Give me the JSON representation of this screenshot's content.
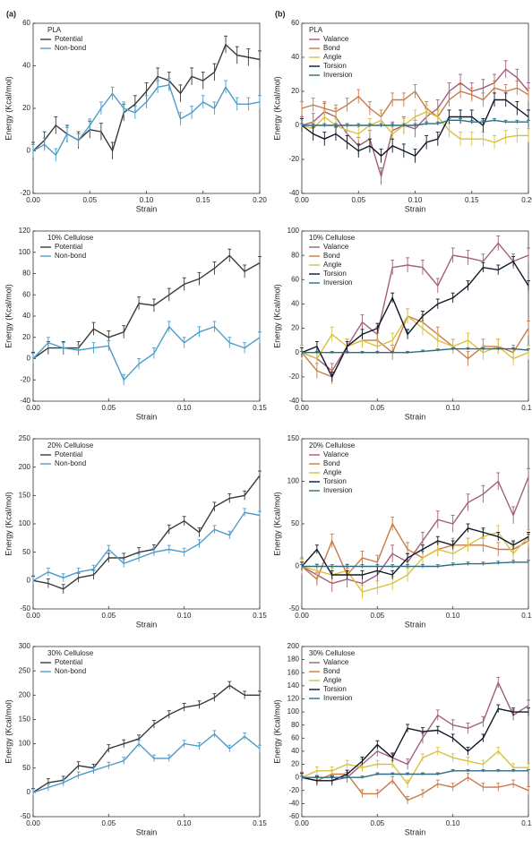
{
  "chart_data": [
    {
      "type": "line",
      "panel_label": "(a)",
      "legend_title": "PLA",
      "xlabel": "Strain",
      "ylabel": "Energy (Kcal/mol)",
      "x": [
        0,
        0.01,
        0.02,
        0.03,
        0.04,
        0.05,
        0.06,
        0.07,
        0.08,
        0.09,
        0.1,
        0.11,
        0.12,
        0.13,
        0.14,
        0.15,
        0.16,
        0.17,
        0.18,
        0.19,
        0.2
      ],
      "xlim": [
        0,
        0.2
      ],
      "xticks": [
        {
          "value": 0,
          "label": "0.00"
        },
        {
          "value": 0.05,
          "label": "0.05"
        },
        {
          "value": 0.1,
          "label": "0.10"
        },
        {
          "value": 0.15,
          "label": "0.15"
        },
        {
          "value": 0.2,
          "label": "0.20"
        }
      ],
      "ylim": [
        -20,
        60
      ],
      "yticks": [
        -20,
        0,
        20,
        40,
        60
      ],
      "series": [
        {
          "name": "Potential",
          "color": "#3a3a3a",
          "error": 4,
          "values": [
            0,
            5,
            12,
            8,
            5,
            10,
            9,
            0,
            18,
            22,
            28,
            35,
            33,
            27,
            35,
            33,
            37,
            50,
            45,
            44,
            43
          ]
        },
        {
          "name": "Non-bond",
          "color": "#4d9cc8",
          "error": 3,
          "values": [
            0,
            3,
            -2,
            8,
            5,
            12,
            20,
            27,
            20,
            18,
            23,
            30,
            31,
            15,
            18,
            23,
            20,
            30,
            22,
            22,
            23
          ]
        }
      ]
    },
    {
      "type": "line",
      "panel_label": "(b)",
      "legend_title": "PLA",
      "xlabel": "Strain",
      "ylabel": "Energy (Kcal/mol)",
      "x": [
        0,
        0.01,
        0.02,
        0.03,
        0.04,
        0.05,
        0.06,
        0.07,
        0.08,
        0.09,
        0.1,
        0.11,
        0.12,
        0.13,
        0.14,
        0.15,
        0.16,
        0.17,
        0.18,
        0.19,
        0.2
      ],
      "xlim": [
        0,
        0.2
      ],
      "xticks": [
        {
          "value": 0,
          "label": "0.00"
        },
        {
          "value": 0.05,
          "label": "0.05"
        },
        {
          "value": 0.1,
          "label": "0.10"
        },
        {
          "value": 0.15,
          "label": "0.15"
        },
        {
          "value": 0.2,
          "label": "0.20"
        }
      ],
      "ylim": [
        -40,
        60
      ],
      "yticks": [
        -40,
        -20,
        0,
        20,
        40,
        60
      ],
      "series": [
        {
          "name": "Valance",
          "color": "#a0607a",
          "error": 5,
          "values": [
            0,
            2,
            8,
            5,
            -5,
            -12,
            -8,
            -30,
            -3,
            0,
            -2,
            5,
            10,
            20,
            25,
            20,
            22,
            25,
            33,
            28,
            20
          ]
        },
        {
          "name": "Bond",
          "color": "#c87a4a",
          "error": 4,
          "values": [
            10,
            12,
            10,
            8,
            12,
            17,
            10,
            5,
            15,
            15,
            20,
            10,
            5,
            15,
            20,
            18,
            15,
            22,
            20,
            22,
            18
          ]
        },
        {
          "name": "Angle",
          "color": "#d8c040",
          "error": 4,
          "values": [
            0,
            -2,
            5,
            0,
            -3,
            -5,
            0,
            3,
            -5,
            0,
            5,
            8,
            5,
            -3,
            -8,
            -8,
            -8,
            -10,
            -7,
            -6,
            -6
          ]
        },
        {
          "name": "Torsion",
          "color": "#101828",
          "error": 4,
          "values": [
            0,
            -5,
            -8,
            -5,
            -10,
            -15,
            -12,
            -18,
            -12,
            -15,
            -18,
            -10,
            -8,
            5,
            5,
            5,
            0,
            15,
            15,
            10,
            5
          ]
        },
        {
          "name": "Inversion",
          "color": "#2f6a80",
          "error": 1,
          "values": [
            0,
            0,
            0,
            0,
            0,
            0,
            0,
            0,
            0,
            0,
            0,
            1,
            1,
            3,
            3,
            2,
            2,
            3,
            2,
            2,
            2
          ]
        }
      ]
    },
    {
      "type": "line",
      "legend_title": "10% Cellulose",
      "xlabel": "Strain",
      "ylabel": "Energy (Kcal/mol)",
      "x": [
        0,
        0.01,
        0.02,
        0.03,
        0.04,
        0.05,
        0.06,
        0.07,
        0.08,
        0.09,
        0.1,
        0.11,
        0.12,
        0.13,
        0.14,
        0.15
      ],
      "xlim": [
        0,
        0.15
      ],
      "xticks": [
        {
          "value": 0,
          "label": "0.00"
        },
        {
          "value": 0.05,
          "label": "0.05"
        },
        {
          "value": 0.1,
          "label": "0.10"
        },
        {
          "value": 0.15,
          "label": "0.15"
        }
      ],
      "ylim": [
        -40,
        120
      ],
      "yticks": [
        -40,
        -20,
        0,
        20,
        40,
        60,
        80,
        100,
        120
      ],
      "series": [
        {
          "name": "Potential",
          "color": "#3a3a3a",
          "error": 6,
          "values": [
            0,
            10,
            10,
            10,
            28,
            20,
            25,
            52,
            50,
            60,
            70,
            75,
            85,
            97,
            82,
            90
          ]
        },
        {
          "name": "Non-bond",
          "color": "#4d9cc8",
          "error": 5,
          "values": [
            0,
            15,
            10,
            8,
            10,
            12,
            -20,
            -5,
            5,
            30,
            15,
            25,
            30,
            15,
            10,
            20
          ]
        }
      ]
    },
    {
      "type": "line",
      "legend_title": "10% Cellulose",
      "xlabel": "Strain",
      "ylabel": "Energy (Kcal/mol)",
      "x": [
        0,
        0.01,
        0.02,
        0.03,
        0.04,
        0.05,
        0.06,
        0.07,
        0.08,
        0.09,
        0.1,
        0.11,
        0.12,
        0.13,
        0.14,
        0.15
      ],
      "xlim": [
        0,
        0.15
      ],
      "xticks": [
        {
          "value": 0,
          "label": "0.00"
        },
        {
          "value": 0.05,
          "label": "0.05"
        },
        {
          "value": 0.1,
          "label": "0.10"
        },
        {
          "value": 0.15,
          "label": "0.15"
        }
      ],
      "ylim": [
        -40,
        100
      ],
      "yticks": [
        -40,
        -20,
        0,
        20,
        40,
        60,
        80,
        100
      ],
      "series": [
        {
          "name": "Valance",
          "color": "#a0607a",
          "error": 6,
          "values": [
            0,
            -5,
            -15,
            5,
            25,
            15,
            70,
            72,
            70,
            55,
            80,
            78,
            75,
            90,
            75,
            80
          ]
        },
        {
          "name": "Bond",
          "color": "#c87a4a",
          "error": 6,
          "values": [
            0,
            -15,
            -20,
            5,
            10,
            10,
            0,
            30,
            25,
            15,
            5,
            -5,
            5,
            5,
            0,
            20
          ]
        },
        {
          "name": "Angle",
          "color": "#d8c040",
          "error": 6,
          "values": [
            0,
            -5,
            15,
            5,
            10,
            5,
            10,
            30,
            20,
            10,
            5,
            10,
            0,
            5,
            -5,
            0
          ]
        },
        {
          "name": "Torsion",
          "color": "#101828",
          "error": 4,
          "values": [
            0,
            5,
            -20,
            5,
            15,
            20,
            45,
            15,
            30,
            40,
            45,
            55,
            70,
            68,
            75,
            55
          ]
        },
        {
          "name": "Inversion",
          "color": "#2f6a80",
          "error": 1,
          "values": [
            0,
            0,
            0,
            0,
            0,
            0,
            0,
            0,
            1,
            2,
            3,
            3,
            3,
            3,
            3,
            2
          ]
        }
      ]
    },
    {
      "type": "line",
      "legend_title": "20% Cellulose",
      "xlabel": "Strain",
      "ylabel": "Energy (Kcal/mol)",
      "x": [
        0,
        0.01,
        0.02,
        0.03,
        0.04,
        0.05,
        0.06,
        0.07,
        0.08,
        0.09,
        0.1,
        0.11,
        0.12,
        0.13,
        0.14,
        0.15
      ],
      "xlim": [
        0,
        0.15
      ],
      "xticks": [
        {
          "value": 0,
          "label": "0.00"
        },
        {
          "value": 0.05,
          "label": "0.05"
        },
        {
          "value": 0.1,
          "label": "0.10"
        },
        {
          "value": 0.15,
          "label": "0.15"
        }
      ],
      "ylim": [
        -50,
        250
      ],
      "yticks": [
        -50,
        0,
        50,
        100,
        150,
        200,
        250
      ],
      "series": [
        {
          "name": "Potential",
          "color": "#3a3a3a",
          "error": 8,
          "values": [
            0,
            -5,
            -15,
            5,
            10,
            40,
            40,
            50,
            55,
            90,
            105,
            85,
            130,
            145,
            150,
            185
          ]
        },
        {
          "name": "Non-bond",
          "color": "#4d9cc8",
          "error": 7,
          "values": [
            0,
            15,
            5,
            15,
            20,
            55,
            30,
            40,
            50,
            55,
            50,
            65,
            90,
            80,
            120,
            115
          ]
        }
      ]
    },
    {
      "type": "line",
      "legend_title": "20% Cellulose",
      "xlabel": "Strain",
      "ylabel": "Energy (Kcal/mol)",
      "x": [
        0,
        0.01,
        0.02,
        0.03,
        0.04,
        0.05,
        0.06,
        0.07,
        0.08,
        0.09,
        0.1,
        0.11,
        0.12,
        0.13,
        0.14,
        0.15
      ],
      "xlim": [
        0,
        0.15
      ],
      "xticks": [
        {
          "value": 0,
          "label": "0.00"
        },
        {
          "value": 0.05,
          "label": "0.05"
        },
        {
          "value": 0.1,
          "label": "0.10"
        },
        {
          "value": 0.15,
          "label": "0.15"
        }
      ],
      "ylim": [
        -50,
        150
      ],
      "yticks": [
        -50,
        0,
        50,
        100,
        150
      ],
      "series": [
        {
          "name": "Valance",
          "color": "#a0607a",
          "error": 10,
          "values": [
            0,
            -10,
            -20,
            -15,
            -20,
            -10,
            15,
            5,
            30,
            55,
            50,
            75,
            85,
            100,
            60,
            105
          ]
        },
        {
          "name": "Bond",
          "color": "#c87a4a",
          "error": 8,
          "values": [
            0,
            -15,
            30,
            -10,
            10,
            5,
            50,
            20,
            10,
            20,
            25,
            25,
            25,
            20,
            20,
            30
          ]
        },
        {
          "name": "Angle",
          "color": "#d8c040",
          "error": 8,
          "values": [
            0,
            -5,
            -10,
            -5,
            -30,
            -25,
            -20,
            -10,
            10,
            20,
            15,
            25,
            35,
            40,
            15,
            35
          ]
        },
        {
          "name": "Torsion",
          "color": "#101828",
          "error": 5,
          "values": [
            0,
            20,
            -10,
            -10,
            -10,
            -5,
            -10,
            10,
            20,
            30,
            25,
            45,
            40,
            35,
            25,
            35
          ]
        },
        {
          "name": "Inversion",
          "color": "#2f6a80",
          "error": 2,
          "values": [
            0,
            0,
            0,
            0,
            0,
            0,
            0,
            0,
            0,
            0,
            2,
            3,
            3,
            4,
            5,
            5
          ]
        }
      ]
    },
    {
      "type": "line",
      "legend_title": "30% Cellulose",
      "xlabel": "Strain",
      "ylabel": "Energy (Kcal/mol)",
      "x": [
        0,
        0.01,
        0.02,
        0.03,
        0.04,
        0.05,
        0.06,
        0.07,
        0.08,
        0.09,
        0.1,
        0.11,
        0.12,
        0.13,
        0.14,
        0.15
      ],
      "xlim": [
        0,
        0.15
      ],
      "xticks": [
        {
          "value": 0,
          "label": "0.00"
        },
        {
          "value": 0.05,
          "label": "0.05"
        },
        {
          "value": 0.1,
          "label": "0.10"
        },
        {
          "value": 0.15,
          "label": "0.15"
        }
      ],
      "ylim": [
        -50,
        300
      ],
      "yticks": [
        -50,
        0,
        50,
        100,
        150,
        200,
        250,
        300
      ],
      "series": [
        {
          "name": "Potential",
          "color": "#3a3a3a",
          "error": 8,
          "values": [
            0,
            20,
            25,
            55,
            50,
            90,
            100,
            110,
            140,
            160,
            175,
            180,
            195,
            220,
            200,
            200
          ]
        },
        {
          "name": "Non-bond",
          "color": "#4d9cc8",
          "error": 7,
          "values": [
            0,
            10,
            20,
            35,
            45,
            55,
            65,
            100,
            70,
            70,
            100,
            95,
            120,
            90,
            115,
            90
          ]
        }
      ]
    },
    {
      "type": "line",
      "legend_title": "30% Cellulose",
      "xlabel": "Strain",
      "ylabel": "Energy (Kcal/mol)",
      "x": [
        0,
        0.01,
        0.02,
        0.03,
        0.04,
        0.05,
        0.06,
        0.07,
        0.08,
        0.09,
        0.1,
        0.11,
        0.12,
        0.13,
        0.14,
        0.15
      ],
      "xlim": [
        0,
        0.15
      ],
      "xticks": [
        {
          "value": 0,
          "label": "0.00"
        },
        {
          "value": 0.05,
          "label": "0.05"
        },
        {
          "value": 0.1,
          "label": "0.10"
        },
        {
          "value": 0.15,
          "label": "0.15"
        }
      ],
      "ylim": [
        -60,
        200
      ],
      "yticks": [
        -60,
        -40,
        -20,
        0,
        20,
        40,
        60,
        80,
        100,
        120,
        140,
        160,
        180,
        200
      ],
      "series": [
        {
          "name": "Valance",
          "color": "#a0607a",
          "error": 8,
          "values": [
            0,
            -5,
            -5,
            0,
            20,
            40,
            30,
            20,
            60,
            95,
            80,
            75,
            85,
            145,
            95,
            110
          ]
        },
        {
          "name": "Bond",
          "color": "#c87a4a",
          "error": 6,
          "values": [
            0,
            -5,
            5,
            5,
            -25,
            -25,
            -5,
            -35,
            -25,
            -10,
            -15,
            0,
            -15,
            -15,
            -10,
            -20
          ]
        },
        {
          "name": "Angle",
          "color": "#d8c040",
          "error": 6,
          "values": [
            0,
            10,
            10,
            20,
            15,
            20,
            20,
            -10,
            30,
            40,
            30,
            25,
            20,
            40,
            15,
            15
          ]
        },
        {
          "name": "Torsion",
          "color": "#101828",
          "error": 6,
          "values": [
            0,
            -5,
            -5,
            5,
            25,
            50,
            30,
            75,
            70,
            72,
            60,
            40,
            60,
            105,
            100,
            100
          ]
        },
        {
          "name": "Inversion",
          "color": "#2f6a80",
          "error": 2,
          "values": [
            0,
            0,
            0,
            0,
            0,
            5,
            5,
            5,
            5,
            5,
            10,
            10,
            10,
            10,
            10,
            10
          ]
        }
      ]
    }
  ]
}
